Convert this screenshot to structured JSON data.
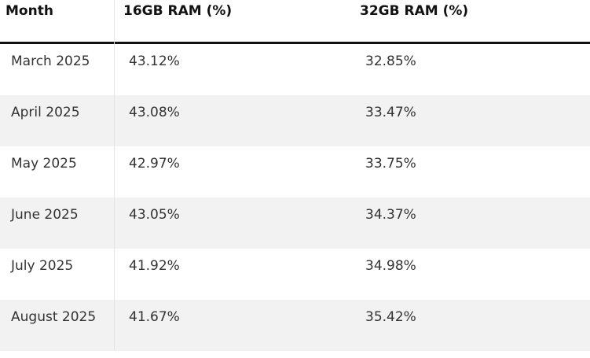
{
  "table": {
    "header": [
      "Month",
      "16GB RAM (%)",
      "32GB RAM (%)"
    ],
    "rows": [
      [
        "March 2025",
        "43.12%",
        "32.85%"
      ],
      [
        "April 2025",
        "43.08%",
        "33.47%"
      ],
      [
        "May 2025",
        "42.97%",
        "33.75%"
      ],
      [
        "June 2025",
        "43.05%",
        "34.37%"
      ],
      [
        "July 2025",
        "41.92%",
        "34.98%"
      ],
      [
        "August 2025",
        "41.67%",
        "35.42%"
      ]
    ]
  }
}
